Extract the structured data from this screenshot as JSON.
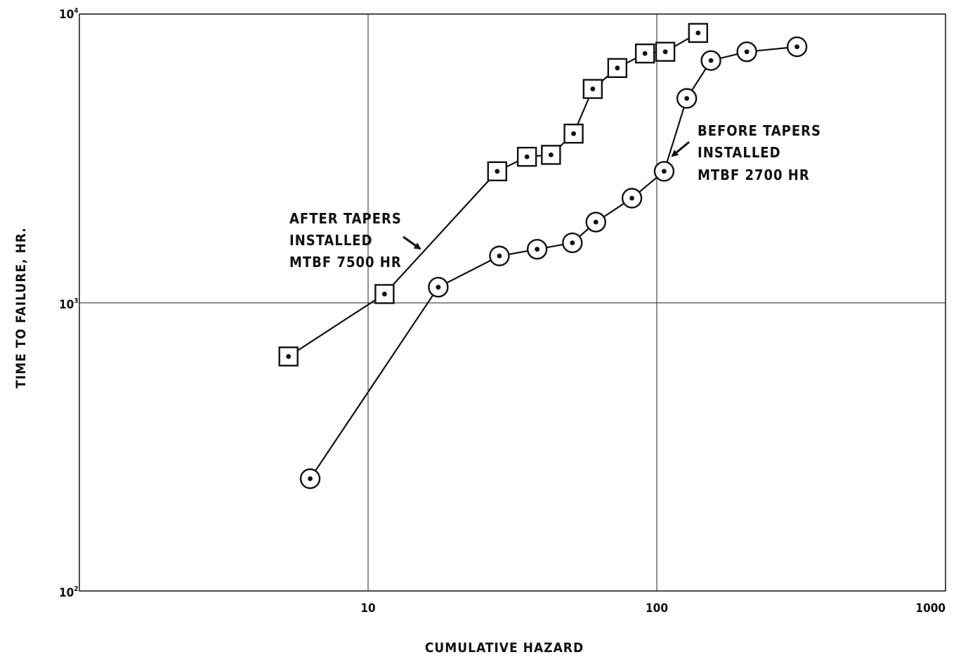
{
  "chart_data": {
    "type": "scatter",
    "title": "",
    "xlabel": "CUMULATIVE HAZARD",
    "ylabel": "TIME TO FAILURE, HR.",
    "xscale": "log",
    "yscale": "log",
    "xlim": [
      1,
      1000
    ],
    "ylim": [
      100,
      10000
    ],
    "x_ticks": [
      "10",
      "100",
      "1000"
    ],
    "y_ticks": [
      {
        "base": "10",
        "exp": "2"
      },
      {
        "base": "10",
        "exp": "3"
      },
      {
        "base": "10",
        "exp": "4"
      }
    ],
    "grid": true,
    "series": [
      {
        "marker": "square",
        "line": true,
        "points": [
          {
            "x": 5.3,
            "y": 650
          },
          {
            "x": 11.4,
            "y": 1070
          },
          {
            "x": 28,
            "y": 2850
          },
          {
            "x": 35.5,
            "y": 3200
          },
          {
            "x": 43,
            "y": 3250
          },
          {
            "x": 51.5,
            "y": 3850
          },
          {
            "x": 60,
            "y": 5500
          },
          {
            "x": 73,
            "y": 6500
          },
          {
            "x": 91,
            "y": 7300
          },
          {
            "x": 107,
            "y": 7400
          },
          {
            "x": 139,
            "y": 8600
          }
        ]
      },
      {
        "marker": "circle",
        "line": true,
        "points": [
          {
            "x": 6.3,
            "y": 245
          },
          {
            "x": 17.5,
            "y": 1130
          },
          {
            "x": 28.5,
            "y": 1450
          },
          {
            "x": 38.5,
            "y": 1530
          },
          {
            "x": 51,
            "y": 1610
          },
          {
            "x": 61.5,
            "y": 1900
          },
          {
            "x": 82,
            "y": 2300
          },
          {
            "x": 106,
            "y": 2850
          },
          {
            "x": 127,
            "y": 5100
          },
          {
            "x": 154,
            "y": 6900
          },
          {
            "x": 205,
            "y": 7400
          },
          {
            "x": 306,
            "y": 7700
          }
        ]
      }
    ],
    "annotations": [
      {
        "lines": [
          "AFTER  TAPERS",
          "INSTALLED",
          "MTBF  7500  HR"
        ]
      },
      {
        "lines": [
          "BEFORE  TAPERS",
          "INSTALLED",
          "MTBF  2700  HR"
        ]
      }
    ]
  }
}
